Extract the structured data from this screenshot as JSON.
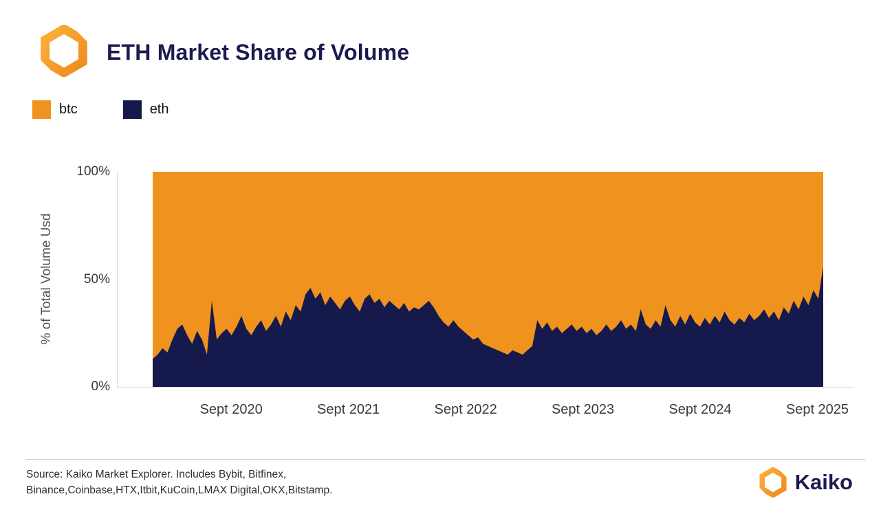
{
  "header": {
    "title": "ETH Market Share of Volume"
  },
  "legend": [
    {
      "label": "btc",
      "color": "#F0921E"
    },
    {
      "label": "eth",
      "color": "#16194C"
    }
  ],
  "chart_data": {
    "type": "area",
    "stacked": "percent",
    "title": "ETH Market Share of Volume",
    "xlabel": "",
    "ylabel": "% of Total Volume Usd",
    "ylim": [
      0,
      100
    ],
    "grid": false,
    "legend_position": "top-left",
    "colors": {
      "btc": "#F0921E",
      "eth": "#16194C"
    },
    "series_order_bottom_to_top": [
      "eth",
      "btc"
    ],
    "y_ticks": [
      {
        "value": 0,
        "label": "0%"
      },
      {
        "value": 50,
        "label": "50%"
      },
      {
        "value": 100,
        "label": "100%"
      }
    ],
    "x_start": 2020.0,
    "x_end": 2025.72,
    "x_ticks": [
      {
        "t": 2020.67,
        "label": "Sept 2020"
      },
      {
        "t": 2021.67,
        "label": "Sept 2021"
      },
      {
        "t": 2022.67,
        "label": "Sept 2022"
      },
      {
        "t": 2023.67,
        "label": "Sept 2023"
      },
      {
        "t": 2024.67,
        "label": "Sept 2024"
      },
      {
        "t": 2025.67,
        "label": "Sept 2025"
      }
    ],
    "eth_share_pct": [
      13,
      15,
      18,
      16,
      22,
      27,
      29,
      24,
      20,
      26,
      22,
      15,
      40,
      22,
      25,
      27,
      24,
      28,
      33,
      27,
      24,
      28,
      31,
      26,
      29,
      33,
      28,
      35,
      31,
      38,
      35,
      43,
      46,
      41,
      44,
      38,
      42,
      39,
      36,
      40,
      42,
      38,
      35,
      41,
      43,
      39,
      41,
      37,
      40,
      38,
      36,
      39,
      35,
      37,
      36,
      38,
      40,
      37,
      33,
      30,
      28,
      31,
      28,
      26,
      24,
      22,
      23,
      20,
      19,
      18,
      17,
      16,
      15,
      17,
      16,
      15,
      17,
      19,
      31,
      27,
      30,
      26,
      28,
      25,
      27,
      29,
      26,
      28,
      25,
      27,
      24,
      26,
      29,
      26,
      28,
      31,
      27,
      29,
      26,
      36,
      29,
      27,
      31,
      28,
      38,
      31,
      28,
      33,
      29,
      34,
      30,
      28,
      32,
      29,
      33,
      30,
      35,
      31,
      29,
      32,
      30,
      34,
      31,
      33,
      36,
      32,
      35,
      31,
      37,
      34,
      40,
      36,
      42,
      38,
      45,
      41,
      56
    ],
    "btc_share_rule": "100 - eth_share_pct"
  },
  "footer": {
    "source_line1": "Source: Kaiko Market Explorer. Includes Bybit, Bitfinex,",
    "source_line2": "Binance,Coinbase,HTX,Itbit,KuCoin,LMAX Digital,OKX,Bitstamp.",
    "brand": "Kaiko"
  }
}
